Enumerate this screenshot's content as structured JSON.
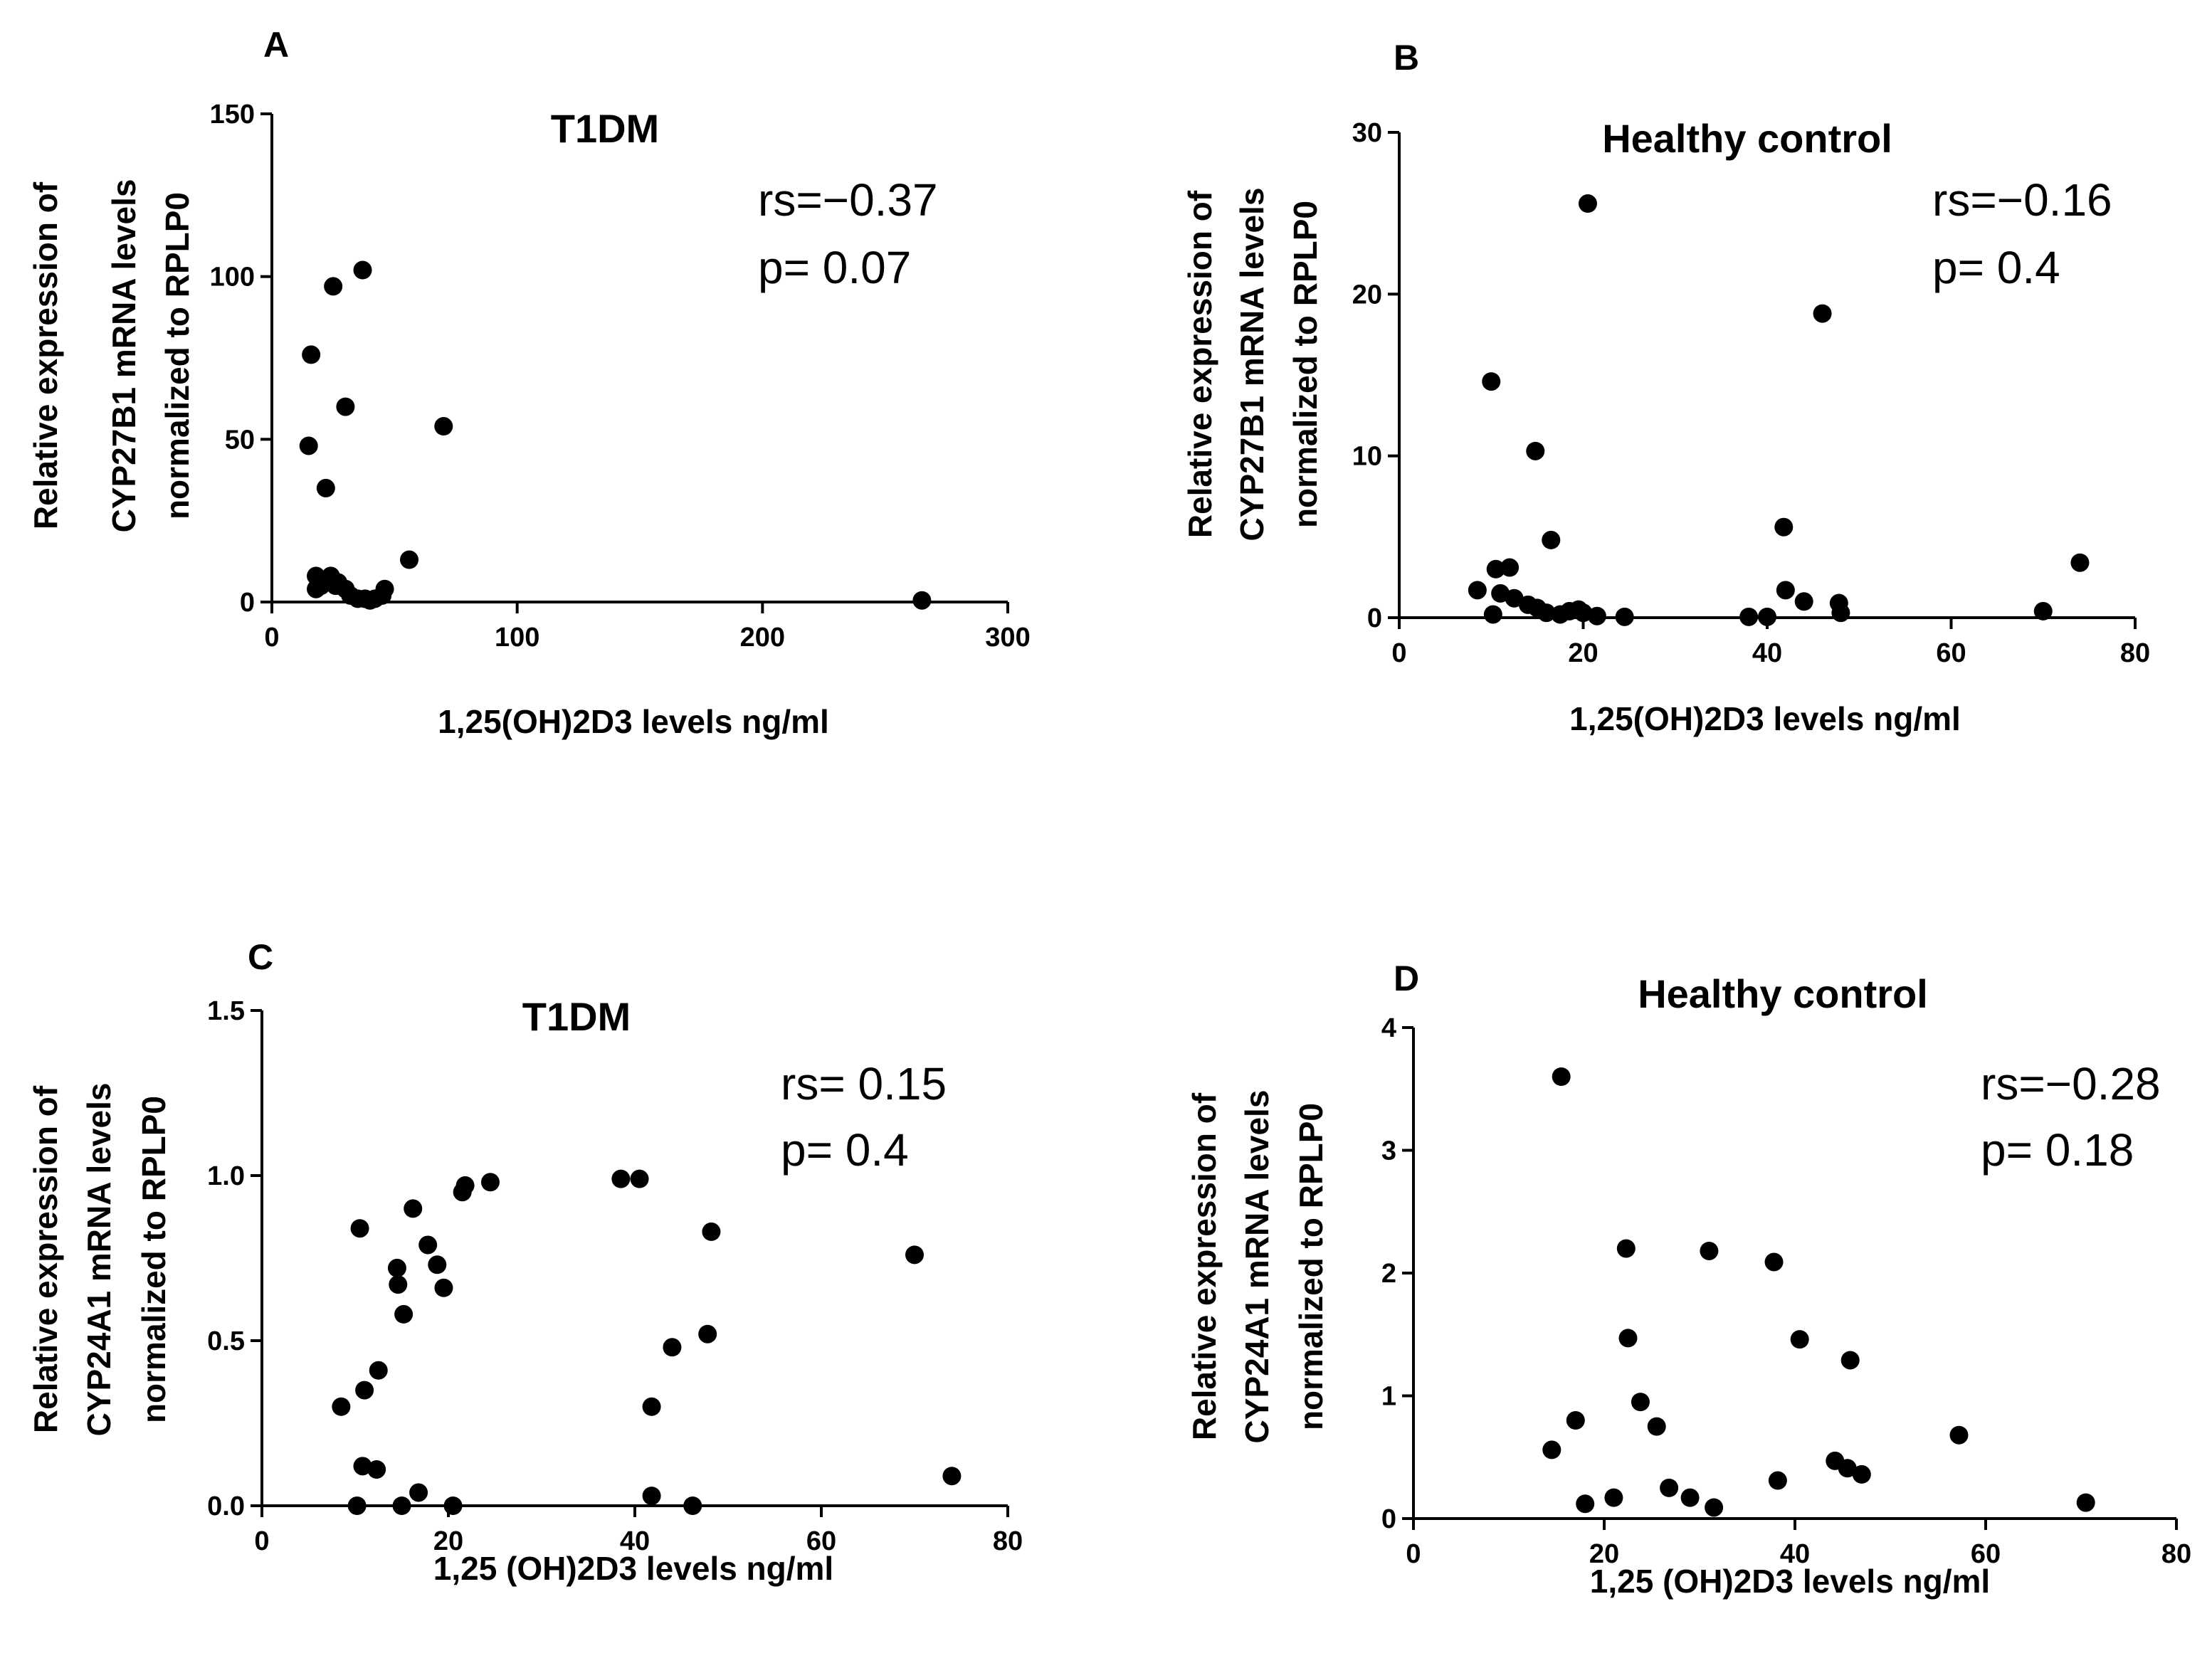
{
  "figure": {
    "colors": {
      "axis": "#000000",
      "marker": "#000000",
      "background": "#ffffff"
    }
  },
  "chart_data": [
    {
      "panel": "A",
      "type": "scatter",
      "title": "T1DM",
      "xlabel": "1,25(OH)2D3 levels ng/ml",
      "ylabel_lines": [
        "Relative expression of",
        "CYP27B1 mRNA levels",
        "normalized to RPLP0"
      ],
      "xlim": [
        0,
        300
      ],
      "ylim": [
        0,
        150
      ],
      "xticks": [
        0,
        100,
        200,
        300
      ],
      "yticks": [
        0,
        50,
        100,
        150
      ],
      "ytick_labels": [
        "0",
        "50",
        "100",
        "150"
      ],
      "stats": {
        "rs": "rs=−0.37",
        "p": "p= 0.07"
      },
      "points": [
        [
          15,
          48
        ],
        [
          16,
          76
        ],
        [
          18,
          4
        ],
        [
          18,
          8
        ],
        [
          20,
          5
        ],
        [
          20,
          7
        ],
        [
          22,
          35
        ],
        [
          22,
          6
        ],
        [
          24,
          8
        ],
        [
          25,
          97
        ],
        [
          26,
          5
        ],
        [
          27,
          6
        ],
        [
          30,
          60
        ],
        [
          30,
          4
        ],
        [
          32,
          2
        ],
        [
          35,
          1
        ],
        [
          37,
          102
        ],
        [
          38,
          1
        ],
        [
          40,
          0.5
        ],
        [
          42,
          1
        ],
        [
          45,
          2
        ],
        [
          46,
          4
        ],
        [
          56,
          13
        ],
        [
          70,
          54
        ],
        [
          265,
          0.5
        ]
      ]
    },
    {
      "panel": "B",
      "type": "scatter",
      "title": "Healthy control",
      "xlabel": "1,25(OH)2D3 levels ng/ml",
      "ylabel_lines": [
        "Relative expression of",
        "CYP27B1 mRNA levels",
        "normalized to RPLP0"
      ],
      "xlim": [
        0,
        80
      ],
      "ylim": [
        0,
        30
      ],
      "xticks": [
        0,
        20,
        40,
        60,
        80
      ],
      "yticks": [
        0,
        10,
        20,
        30
      ],
      "ytick_labels": [
        "0",
        "10",
        "20",
        "30"
      ],
      "stats": {
        "rs": "rs=−0.16",
        "p": "p= 0.4"
      },
      "points": [
        [
          8.5,
          1.7
        ],
        [
          10,
          14.6
        ],
        [
          10.2,
          0.2
        ],
        [
          10.5,
          3.0
        ],
        [
          11,
          1.5
        ],
        [
          12,
          3.1
        ],
        [
          12.5,
          1.2
        ],
        [
          14,
          0.8
        ],
        [
          14.8,
          10.3
        ],
        [
          15,
          0.6
        ],
        [
          16,
          0.3
        ],
        [
          16.5,
          4.8
        ],
        [
          17.5,
          0.2
        ],
        [
          18.5,
          0.4
        ],
        [
          19.5,
          0.5
        ],
        [
          20,
          0.3
        ],
        [
          20.5,
          25.6
        ],
        [
          21.5,
          0.1
        ],
        [
          24.5,
          0.05
        ],
        [
          38,
          0.05
        ],
        [
          40,
          0.05
        ],
        [
          41.8,
          5.6
        ],
        [
          42,
          1.7
        ],
        [
          44,
          1.0
        ],
        [
          46,
          18.8
        ],
        [
          47.8,
          0.9
        ],
        [
          48,
          0.3
        ],
        [
          70,
          0.4
        ],
        [
          74,
          3.4
        ]
      ]
    },
    {
      "panel": "C",
      "type": "scatter",
      "title": "T1DM",
      "xlabel": "1,25 (OH)2D3 levels ng/ml",
      "ylabel_lines": [
        "Relative expression of",
        "CYP24A1 mRNA levels",
        "normalized to RPLP0"
      ],
      "xlim": [
        0,
        80
      ],
      "ylim": [
        0,
        1.5
      ],
      "xticks": [
        0,
        20,
        40,
        60,
        80
      ],
      "yticks": [
        0,
        0.5,
        1.0,
        1.5
      ],
      "ytick_labels": [
        "0.0",
        "0.5",
        "1.0",
        "1.5"
      ],
      "stats": {
        "rs": "rs= 0.15",
        "p": "p= 0.4"
      },
      "points": [
        [
          8.5,
          0.3
        ],
        [
          10.2,
          0.0
        ],
        [
          10.5,
          0.84
        ],
        [
          10.8,
          0.12
        ],
        [
          11,
          0.35
        ],
        [
          12.5,
          0.41
        ],
        [
          12.3,
          0.11
        ],
        [
          14.5,
          0.72
        ],
        [
          14.6,
          0.67
        ],
        [
          15,
          0.0
        ],
        [
          15.2,
          0.58
        ],
        [
          16.2,
          0.9
        ],
        [
          16.8,
          0.04
        ],
        [
          17.8,
          0.79
        ],
        [
          18.8,
          0.73
        ],
        [
          19.5,
          0.66
        ],
        [
          20.5,
          0.0
        ],
        [
          21.5,
          0.95
        ],
        [
          21.8,
          0.97
        ],
        [
          24.5,
          0.98
        ],
        [
          38.5,
          0.99
        ],
        [
          40.5,
          0.99
        ],
        [
          41.8,
          0.3
        ],
        [
          41.8,
          0.03
        ],
        [
          44,
          0.48
        ],
        [
          46.2,
          0.0
        ],
        [
          47.8,
          0.52
        ],
        [
          48.2,
          0.83
        ],
        [
          70,
          0.76
        ],
        [
          74,
          0.09
        ]
      ]
    },
    {
      "panel": "D",
      "type": "scatter",
      "title": "Healthy control",
      "xlabel": "1,25 (OH)2D3 levels ng/ml",
      "ylabel_lines": [
        "Relative expression of",
        "CYP24A1 mRNA levels",
        "normalized to RPLP0"
      ],
      "xlim": [
        0,
        80
      ],
      "ylim": [
        0,
        4
      ],
      "xticks": [
        0,
        20,
        40,
        60,
        80
      ],
      "yticks": [
        0,
        1,
        2,
        3,
        4
      ],
      "ytick_labels": [
        "0",
        "1",
        "2",
        "3",
        "4"
      ],
      "stats": {
        "rs": "rs=−0.28",
        "p": "p= 0.18"
      },
      "points": [
        [
          14.5,
          0.56
        ],
        [
          15.5,
          3.6
        ],
        [
          17,
          0.8
        ],
        [
          18,
          0.12
        ],
        [
          21,
          0.17
        ],
        [
          22.3,
          2.2
        ],
        [
          22.5,
          1.47
        ],
        [
          23.8,
          0.95
        ],
        [
          25.5,
          0.75
        ],
        [
          26.8,
          0.25
        ],
        [
          29,
          0.17
        ],
        [
          31,
          2.18
        ],
        [
          31.5,
          0.09
        ],
        [
          37.8,
          2.09
        ],
        [
          38.2,
          0.31
        ],
        [
          40.5,
          1.46
        ],
        [
          44.2,
          0.47
        ],
        [
          45.5,
          0.41
        ],
        [
          45.8,
          1.29
        ],
        [
          47,
          0.36
        ],
        [
          57.2,
          0.68
        ],
        [
          70.5,
          0.13
        ]
      ]
    }
  ]
}
